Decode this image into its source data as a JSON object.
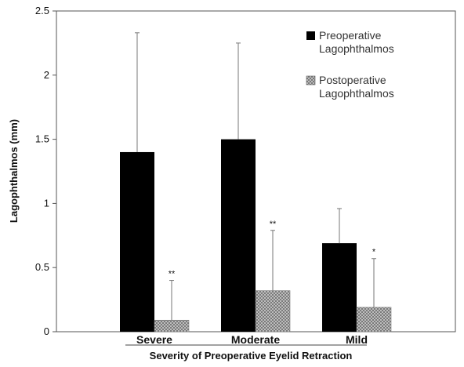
{
  "chart_data": {
    "type": "bar",
    "title": "",
    "xlabel": "Severity of Preoperative Eyelid Retraction",
    "ylabel": "Lagophthalmos (mm)",
    "ylim": [
      0,
      2.5
    ],
    "yticks": [
      "0",
      "0.5",
      "1",
      "1.5",
      "2",
      "2.5"
    ],
    "categories": [
      "Severe",
      "Moderate",
      "Mild"
    ],
    "series": [
      {
        "name": "Preoperative Lagophthalmos",
        "legend_lines": [
          "Preoperative",
          "Lagophthalmos"
        ],
        "values": [
          1.4,
          1.5,
          0.69
        ],
        "error": [
          0.93,
          0.75,
          0.27
        ],
        "color": "#000000",
        "pattern": "solid"
      },
      {
        "name": "Postoperative Lagophthalmos",
        "legend_lines": [
          "Postoperative",
          "Lagophthalmos"
        ],
        "values": [
          0.09,
          0.32,
          0.19
        ],
        "error": [
          0.31,
          0.47,
          0.38
        ],
        "color": "#9a9a9a",
        "pattern": "crosshatch",
        "annotations": [
          "**",
          "**",
          "*"
        ]
      }
    ],
    "legend_position": "top-right",
    "grid": false
  }
}
